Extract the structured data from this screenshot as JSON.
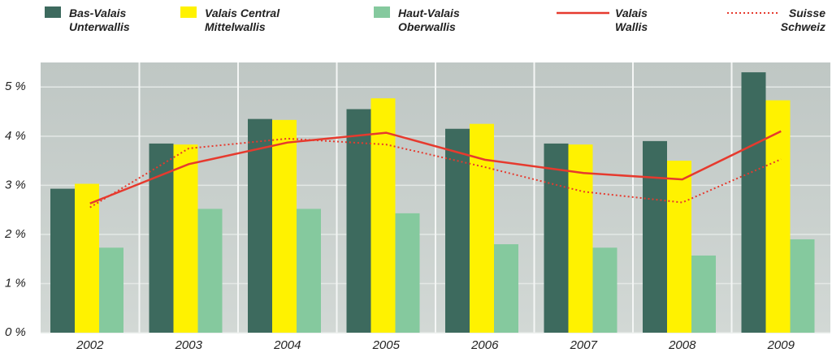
{
  "chart_data": {
    "type": "bar",
    "categories": [
      "2002",
      "2003",
      "2004",
      "2005",
      "2006",
      "2007",
      "2008",
      "2009"
    ],
    "series": [
      {
        "name": "Bas-Valais\nUnterwallis",
        "color": "#3d6a5e",
        "values": [
          2.93,
          3.85,
          4.35,
          4.55,
          4.15,
          3.85,
          3.9,
          5.3
        ]
      },
      {
        "name": "Valais Central\nMittelwallis",
        "color": "#fff200",
        "values": [
          3.03,
          3.83,
          4.33,
          4.77,
          4.25,
          3.83,
          3.5,
          4.73
        ]
      },
      {
        "name": "Haut-Valais\nOberwallis",
        "color": "#85c99e",
        "values": [
          1.73,
          2.52,
          2.52,
          2.43,
          1.8,
          1.73,
          1.57,
          1.9
        ]
      },
      {
        "name": "Valais\nWallis",
        "color": "#e63a2e",
        "type": "line",
        "style": "solid",
        "values": [
          2.63,
          3.43,
          3.87,
          4.07,
          3.52,
          3.25,
          3.12,
          4.1
        ]
      },
      {
        "name": "Suisse\nSchweiz",
        "color": "#e63a2e",
        "type": "line",
        "style": "dotted",
        "values": [
          2.55,
          3.75,
          3.95,
          3.83,
          3.37,
          2.87,
          2.65,
          3.53
        ]
      }
    ],
    "ylim": [
      0,
      5.5
    ],
    "yticks": [
      {
        "value": 0,
        "label": "0 %"
      },
      {
        "value": 1,
        "label": "1 %"
      },
      {
        "value": 2,
        "label": "2 %"
      },
      {
        "value": 3,
        "label": "3 %"
      },
      {
        "value": 4,
        "label": "4 %"
      },
      {
        "value": 5,
        "label": "5 %"
      }
    ],
    "grid": true
  }
}
